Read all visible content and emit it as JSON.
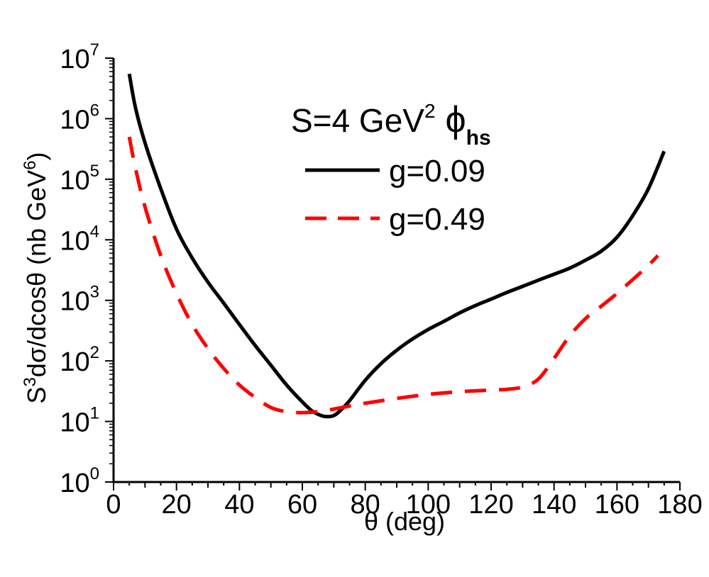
{
  "chart_data": {
    "type": "line",
    "title": {
      "main": "S=4 GeV",
      "main_sup": "2",
      "phi": "ϕ",
      "phi_sub": "hs"
    },
    "xlabel": "θ (deg)",
    "ylabel": {
      "s": "S",
      "s_sup": "3",
      "mid": "dσ/dcosθ (nb GeV",
      "gev_sup": "6",
      "end": ")"
    },
    "xlim": [
      0,
      180
    ],
    "ylim_log10": [
      0,
      7
    ],
    "yscale": "log",
    "x_ticks": [
      "0",
      "20",
      "40",
      "60",
      "80",
      "100",
      "120",
      "140",
      "160",
      "180"
    ],
    "y_ticks": [
      {
        "base": "10",
        "exp": "0"
      },
      {
        "base": "10",
        "exp": "1"
      },
      {
        "base": "10",
        "exp": "2"
      },
      {
        "base": "10",
        "exp": "3"
      },
      {
        "base": "10",
        "exp": "4"
      },
      {
        "base": "10",
        "exp": "5"
      },
      {
        "base": "10",
        "exp": "6"
      },
      {
        "base": "10",
        "exp": "7"
      }
    ],
    "legend_position": "top-right",
    "series": [
      {
        "name": "g=0.09",
        "color": "#000000",
        "dash": "solid",
        "x": [
          5,
          7,
          10,
          15,
          20,
          25,
          30,
          35,
          40,
          45,
          50,
          55,
          60,
          63,
          66,
          68,
          70,
          72,
          75,
          80,
          85,
          90,
          95,
          100,
          105,
          110,
          115,
          120,
          125,
          130,
          135,
          140,
          145,
          150,
          155,
          160,
          165,
          170,
          175
        ],
        "y": [
          5500000,
          1500000,
          400000,
          70000,
          15000,
          5000,
          2000,
          900,
          400,
          180,
          85,
          40,
          21,
          15,
          12.5,
          12,
          12.5,
          15,
          22,
          48,
          90,
          150,
          230,
          330,
          450,
          620,
          820,
          1050,
          1350,
          1700,
          2150,
          2700,
          3400,
          4600,
          6500,
          11000,
          25000,
          70000,
          290000
        ]
      },
      {
        "name": "g=0.49",
        "color": "#ff0000",
        "dash": "dashed",
        "x": [
          5,
          7,
          10,
          15,
          20,
          25,
          30,
          35,
          40,
          45,
          50,
          55,
          60,
          65,
          70,
          75,
          80,
          90,
          100,
          110,
          120,
          125,
          130,
          135,
          140,
          145,
          150,
          155,
          160,
          165,
          170,
          173
        ],
        "y": [
          500000,
          150000,
          35000,
          5500,
          1300,
          400,
          160,
          75,
          40,
          25,
          17,
          14.5,
          14,
          14.5,
          16,
          18,
          20,
          24,
          28,
          31,
          33,
          34,
          37,
          50,
          110,
          260,
          500,
          800,
          1300,
          2200,
          3800,
          5500
        ]
      }
    ]
  }
}
